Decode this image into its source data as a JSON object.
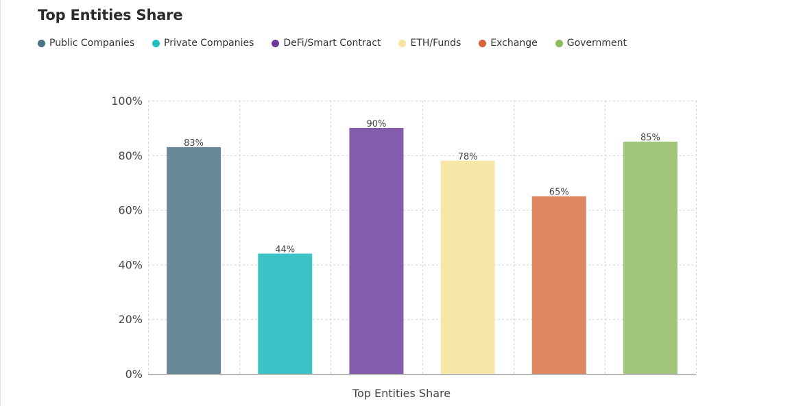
{
  "header": {
    "title": "Top Entities Share"
  },
  "legend": {
    "items": [
      {
        "label": "Public Companies",
        "color": "#4a7287"
      },
      {
        "label": "Private Companies",
        "color": "#20bcc4"
      },
      {
        "label": "DeFi/Smart Contract",
        "color": "#6a3a9c"
      },
      {
        "label": "ETH/Funds",
        "color": "#f7e3a1"
      },
      {
        "label": "Exchange",
        "color": "#d9653f"
      },
      {
        "label": "Government",
        "color": "#8dba5c"
      }
    ]
  },
  "chart_data": {
    "type": "bar",
    "categories": [
      "Public Companies",
      "Private Companies",
      "DeFi/Smart Contract",
      "ETH/Funds",
      "Exchange",
      "Government"
    ],
    "values": [
      83,
      44,
      90,
      78,
      65,
      85
    ],
    "value_labels": [
      "83%",
      "44%",
      "90%",
      "78%",
      "65%",
      "85%"
    ],
    "bar_colors": [
      "#688a98",
      "#3dc2c8",
      "#855bac",
      "#f7e6a7",
      "#df8560",
      "#a1c57a"
    ],
    "ylim": [
      0,
      100
    ],
    "yticks": [
      0,
      20,
      40,
      60,
      80,
      100
    ],
    "ytick_labels": [
      "0%",
      "20%",
      "40%",
      "60%",
      "80%",
      "100%"
    ],
    "xlabel": "Top Entities Share",
    "ylabel": "",
    "grid": true,
    "legend_position": "top-left"
  }
}
